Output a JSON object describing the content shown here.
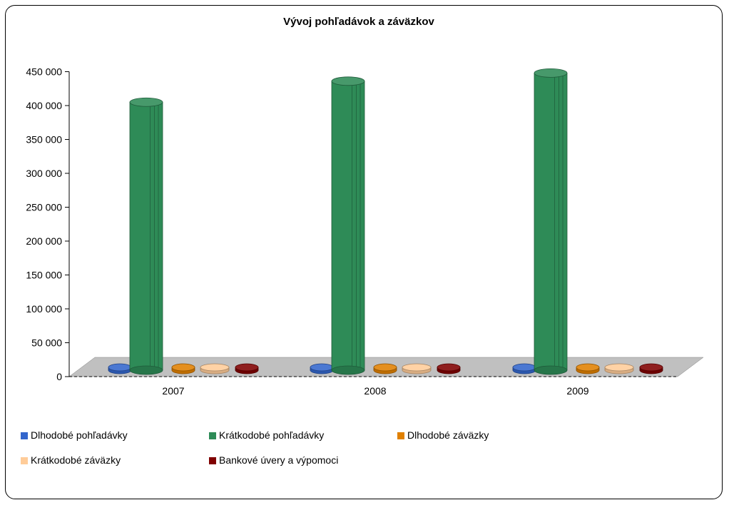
{
  "chart_data": {
    "type": "bar",
    "title": "Vývoj pohľadávok a záväzkov",
    "xlabel": "",
    "ylabel": "",
    "categories": [
      "2007",
      "2008",
      "2009"
    ],
    "ylim": [
      0,
      450000
    ],
    "y_ticks": [
      "0",
      "50 000",
      "100 000",
      "150 000",
      "200 000",
      "250 000",
      "300 000",
      "350 000",
      "400 000",
      "450 000"
    ],
    "series": [
      {
        "name": "Dlhodobé pohľadávky",
        "color": "#3366cc",
        "values": [
          500,
          500,
          500
        ]
      },
      {
        "name": "Krátkodobé pohľadávky",
        "color": "#2e8b57",
        "values": [
          405000,
          436000,
          448000
        ]
      },
      {
        "name": "Dlhodobé záväzky",
        "color": "#e08000",
        "values": [
          500,
          500,
          500
        ]
      },
      {
        "name": "Krátkodobé záväzky",
        "color": "#ffcc99",
        "values": [
          4000,
          4000,
          12000
        ]
      },
      {
        "name": "Bankové úvery a výpomoci",
        "color": "#800000",
        "values": [
          500,
          500,
          500
        ]
      }
    ],
    "legend_position": "bottom",
    "grid": false
  }
}
